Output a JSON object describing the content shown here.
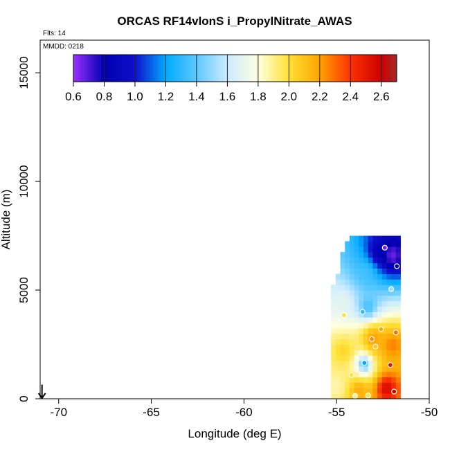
{
  "chart_data": {
    "type": "heatmap",
    "title": "ORCAS RF14vlonS i_PropylNitrate_AWAS",
    "flights_text": "Flts: 14",
    "date_text": "MMDD: 0218",
    "xlabel": "Longitude (deg E)",
    "ylabel": "Altitude (m)",
    "xlim": [
      -71,
      -50
    ],
    "ylim": [
      0,
      16500
    ],
    "x_ticks": [
      -70,
      -65,
      -60,
      -55,
      -50
    ],
    "y_ticks": [
      0,
      5000,
      10000,
      15000
    ],
    "x_tick_labels": [
      "-70",
      "-65",
      "-60",
      "-55",
      "-50"
    ],
    "y_tick_labels": [
      "0",
      "5000",
      "10000",
      "15000"
    ],
    "colorbar": {
      "range": [
        0.6,
        2.7
      ],
      "ticks": [
        0.6,
        0.8,
        1.0,
        1.2,
        1.4,
        1.6,
        1.8,
        2.0,
        2.2,
        2.4,
        2.6
      ],
      "tick_labels": [
        "0.6",
        "0.8",
        "1.0",
        "1.2",
        "1.4",
        "1.6",
        "1.8",
        "2.0",
        "2.2",
        "2.4",
        "2.6"
      ],
      "stops": [
        {
          "v": 0.6,
          "color": "#9B30FF"
        },
        {
          "v": 0.8,
          "color": "#0000B0"
        },
        {
          "v": 1.0,
          "color": "#1010CC"
        },
        {
          "v": 1.2,
          "color": "#00AAFF"
        },
        {
          "v": 1.4,
          "color": "#5CC8FF"
        },
        {
          "v": 1.6,
          "color": "#CCEBFF"
        },
        {
          "v": 1.8,
          "color": "#FFFFE0"
        },
        {
          "v": 2.0,
          "color": "#FFE033"
        },
        {
          "v": 2.2,
          "color": "#FFA500"
        },
        {
          "v": 2.4,
          "color": "#FF3000"
        },
        {
          "v": 2.6,
          "color": "#CC0000"
        },
        {
          "v": 2.7,
          "color": "#A52A2A"
        }
      ]
    },
    "field": {
      "lon_min": -55.3,
      "lon_max": -51.6,
      "lon_step": 0.25,
      "alt_step": 250,
      "alt_top_shape": [
        {
          "lon": -55.3,
          "alt": 5000
        },
        {
          "lon": -55.0,
          "alt": 5500
        },
        {
          "lon": -54.6,
          "alt": 6800
        },
        {
          "lon": -54.2,
          "alt": 7300
        },
        {
          "lon": -53.5,
          "alt": 7400
        },
        {
          "lon": -51.6,
          "alt": 7500
        }
      ],
      "centers": [
        {
          "lon": -52.0,
          "alt": 6600,
          "v": 0.62,
          "r": 1.0
        },
        {
          "lon": -52.7,
          "alt": 6700,
          "v": 0.8,
          "r": 0.8
        },
        {
          "lon": -53.4,
          "alt": 5800,
          "v": 1.35,
          "r": 1.0
        },
        {
          "lon": -53.3,
          "alt": 4200,
          "v": 1.3,
          "r": 0.9
        },
        {
          "lon": -54.6,
          "alt": 4500,
          "v": 1.7,
          "r": 0.8
        },
        {
          "lon": -53.0,
          "alt": 2800,
          "v": 2.25,
          "r": 1.1
        },
        {
          "lon": -54.6,
          "alt": 2200,
          "v": 2.05,
          "r": 0.9
        },
        {
          "lon": -53.5,
          "alt": 1600,
          "v": 1.3,
          "r": 0.7
        },
        {
          "lon": -52.0,
          "alt": 2500,
          "v": 2.3,
          "r": 1.0
        },
        {
          "lon": -52.3,
          "alt": 500,
          "v": 2.6,
          "r": 0.8
        },
        {
          "lon": -53.8,
          "alt": 400,
          "v": 2.2,
          "r": 0.8
        },
        {
          "lon": -55.0,
          "alt": 600,
          "v": 1.85,
          "r": 0.8
        }
      ]
    },
    "samples": [
      {
        "lon": -52.4,
        "alt": 6950,
        "v": 0.65
      },
      {
        "lon": -51.75,
        "alt": 6100,
        "v": 0.8
      },
      {
        "lon": -52.05,
        "alt": 5050,
        "v": 1.5
      },
      {
        "lon": -53.6,
        "alt": 4000,
        "v": 1.3
      },
      {
        "lon": -54.6,
        "alt": 3850,
        "v": 2.0
      },
      {
        "lon": -52.6,
        "alt": 3200,
        "v": 2.2
      },
      {
        "lon": -51.8,
        "alt": 3050,
        "v": 2.3
      },
      {
        "lon": -53.1,
        "alt": 2750,
        "v": 2.25
      },
      {
        "lon": -52.9,
        "alt": 2400,
        "v": 2.1
      },
      {
        "lon": -53.5,
        "alt": 1650,
        "v": 1.2
      },
      {
        "lon": -52.1,
        "alt": 1550,
        "v": 2.5
      },
      {
        "lon": -54.2,
        "alt": 1100,
        "v": 2.0
      },
      {
        "lon": -51.9,
        "alt": 330,
        "v": 2.6
      },
      {
        "lon": -53.3,
        "alt": 150,
        "v": 2.0
      },
      {
        "lon": -54.0,
        "alt": 130,
        "v": 1.9
      }
    ],
    "marker": {
      "lon": -70.9,
      "alt_top": 650,
      "alt_bottom": 0
    }
  }
}
